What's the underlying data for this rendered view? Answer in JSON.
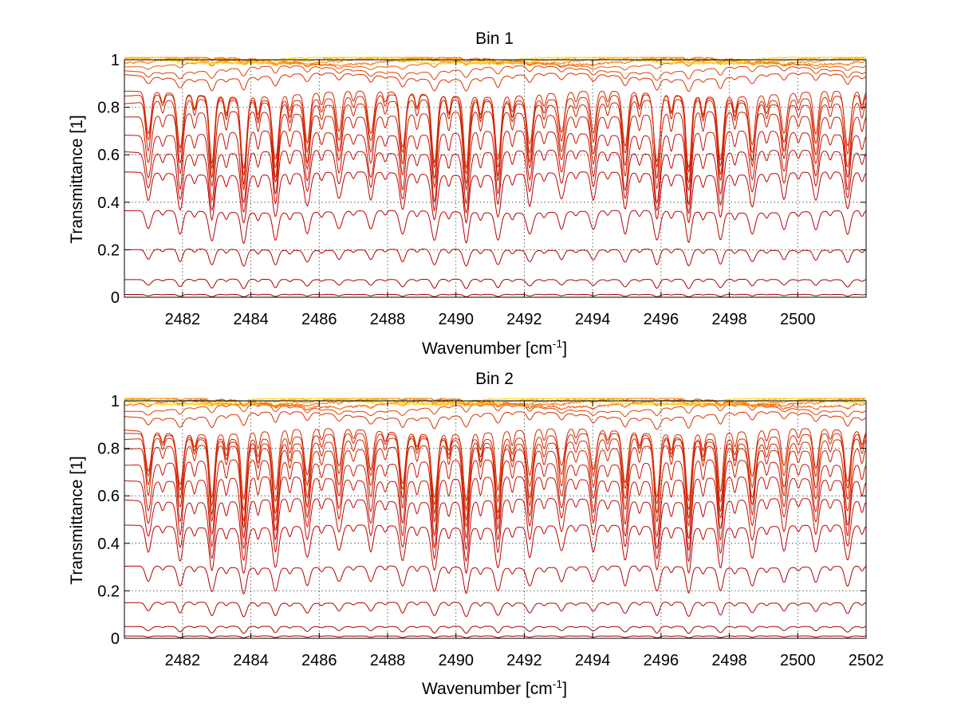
{
  "figure": {
    "colors": {
      "background": "#ffffff",
      "axes": "#000000",
      "grid": "#3c3c3c",
      "series_dark": "#9e0000",
      "series_mid": "#d92b00",
      "series_light": "#ff8200",
      "series_top": "#ffd000"
    }
  },
  "chart_data": [
    {
      "type": "line",
      "title": "Bin 1",
      "xlabel": "Wavenumber [cm",
      "xlabel_sup": "-1",
      "xlabel_tail": "]",
      "ylabel": "Transmittance [1]",
      "xlim": [
        2480.3,
        2502.0
      ],
      "ylim": [
        0,
        1
      ],
      "xticks": [
        2482,
        2484,
        2486,
        2488,
        2490,
        2492,
        2494,
        2496,
        2498,
        2500
      ],
      "xtick_labels": [
        "2482",
        "2484",
        "2486",
        "2488",
        "2490",
        "2492",
        "2494",
        "2496",
        "2498",
        "2500"
      ],
      "yticks": [
        0,
        0.2,
        0.4,
        0.6,
        0.8,
        1
      ],
      "ytick_labels": [
        "0",
        "0.2",
        "0.4",
        "0.6",
        "0.8",
        "1"
      ],
      "grid": true,
      "legend": "none",
      "absorption_line_spacing": 0.93,
      "absorption_first_line": 2481.0,
      "series_description": "family of transmittance spectra; each curve has a continuum level and periodic absorption dips",
      "series": [
        {
          "continuum": 0.0,
          "depth": 0.0,
          "color": "#9e0000"
        },
        {
          "continuum": 0.012,
          "depth": 0.01,
          "color": "#9e0000"
        },
        {
          "continuum": 0.075,
          "depth": 0.04,
          "color": "#a80000"
        },
        {
          "continuum": 0.2,
          "depth": 0.07,
          "color": "#b00000"
        },
        {
          "continuum": 0.36,
          "depth": 0.13,
          "color": "#b80000"
        },
        {
          "continuum": 0.52,
          "depth": 0.2,
          "color": "#bf0000"
        },
        {
          "continuum": 0.61,
          "depth": 0.25,
          "color": "#c20800"
        },
        {
          "continuum": 0.69,
          "depth": 0.3,
          "color": "#c61000"
        },
        {
          "continuum": 0.77,
          "depth": 0.33,
          "color": "#ca1800"
        },
        {
          "continuum": 0.82,
          "depth": 0.35,
          "color": "#cf2000"
        },
        {
          "continuum": 0.84,
          "depth": 0.32,
          "color": "#d12400"
        },
        {
          "continuum": 0.855,
          "depth": 0.3,
          "color": "#d42800"
        },
        {
          "continuum": 0.93,
          "depth": 0.05,
          "color": "#d83000"
        },
        {
          "continuum": 0.96,
          "depth": 0.035,
          "color": "#e04000"
        },
        {
          "continuum": 0.985,
          "depth": 0.02,
          "color": "#ea5a00"
        },
        {
          "continuum": 0.995,
          "depth": 0.012,
          "color": "#f47000"
        },
        {
          "continuum": 1.0,
          "depth": 0.008,
          "color": "#ff8c00"
        },
        {
          "continuum": 1.0,
          "depth": 0.005,
          "color": "#ffb000"
        },
        {
          "continuum": 1.0,
          "depth": 0.004,
          "color": "#ffd000"
        }
      ]
    },
    {
      "type": "line",
      "title": "Bin 2",
      "xlabel": "Wavenumber [cm",
      "xlabel_sup": "-1",
      "xlabel_tail": "]",
      "ylabel": "Transmittance [1]",
      "xlim": [
        2480.3,
        2502.0
      ],
      "ylim": [
        0,
        1
      ],
      "xticks": [
        2482,
        2484,
        2486,
        2488,
        2490,
        2492,
        2494,
        2496,
        2498,
        2500,
        2502
      ],
      "xtick_labels": [
        "2482",
        "2484",
        "2486",
        "2488",
        "2490",
        "2492",
        "2494",
        "2496",
        "2498",
        "2500",
        "2502"
      ],
      "yticks": [
        0,
        0.2,
        0.4,
        0.6,
        0.8,
        1
      ],
      "ytick_labels": [
        "0",
        "0.2",
        "0.4",
        "0.6",
        "0.8",
        "1"
      ],
      "grid": true,
      "legend": "none",
      "absorption_line_spacing": 0.93,
      "absorption_first_line": 2481.0,
      "series_description": "family of transmittance spectra; each curve has a continuum level and periodic absorption dips",
      "series": [
        {
          "continuum": 0.0,
          "depth": 0.0,
          "color": "#9e0000"
        },
        {
          "continuum": 0.01,
          "depth": 0.008,
          "color": "#9e0000"
        },
        {
          "continuum": 0.05,
          "depth": 0.03,
          "color": "#a80000"
        },
        {
          "continuum": 0.15,
          "depth": 0.06,
          "color": "#b00000"
        },
        {
          "continuum": 0.3,
          "depth": 0.11,
          "color": "#b80000"
        },
        {
          "continuum": 0.47,
          "depth": 0.19,
          "color": "#bf0000"
        },
        {
          "continuum": 0.58,
          "depth": 0.25,
          "color": "#c20800"
        },
        {
          "continuum": 0.67,
          "depth": 0.3,
          "color": "#c61000"
        },
        {
          "continuum": 0.74,
          "depth": 0.33,
          "color": "#ca1800"
        },
        {
          "continuum": 0.8,
          "depth": 0.34,
          "color": "#cf2000"
        },
        {
          "continuum": 0.83,
          "depth": 0.33,
          "color": "#d12400"
        },
        {
          "continuum": 0.85,
          "depth": 0.3,
          "color": "#d42800"
        },
        {
          "continuum": 0.87,
          "depth": 0.28,
          "color": "#d42800"
        },
        {
          "continuum": 0.94,
          "depth": 0.05,
          "color": "#d83000"
        },
        {
          "continuum": 0.97,
          "depth": 0.03,
          "color": "#e04000"
        },
        {
          "continuum": 0.99,
          "depth": 0.02,
          "color": "#ea5a00"
        },
        {
          "continuum": 1.0,
          "depth": 0.012,
          "color": "#f47000"
        },
        {
          "continuum": 1.0,
          "depth": 0.008,
          "color": "#ff8c00"
        },
        {
          "continuum": 1.0,
          "depth": 0.005,
          "color": "#ffb000"
        },
        {
          "continuum": 1.0,
          "depth": 0.004,
          "color": "#ffd000"
        }
      ]
    }
  ]
}
